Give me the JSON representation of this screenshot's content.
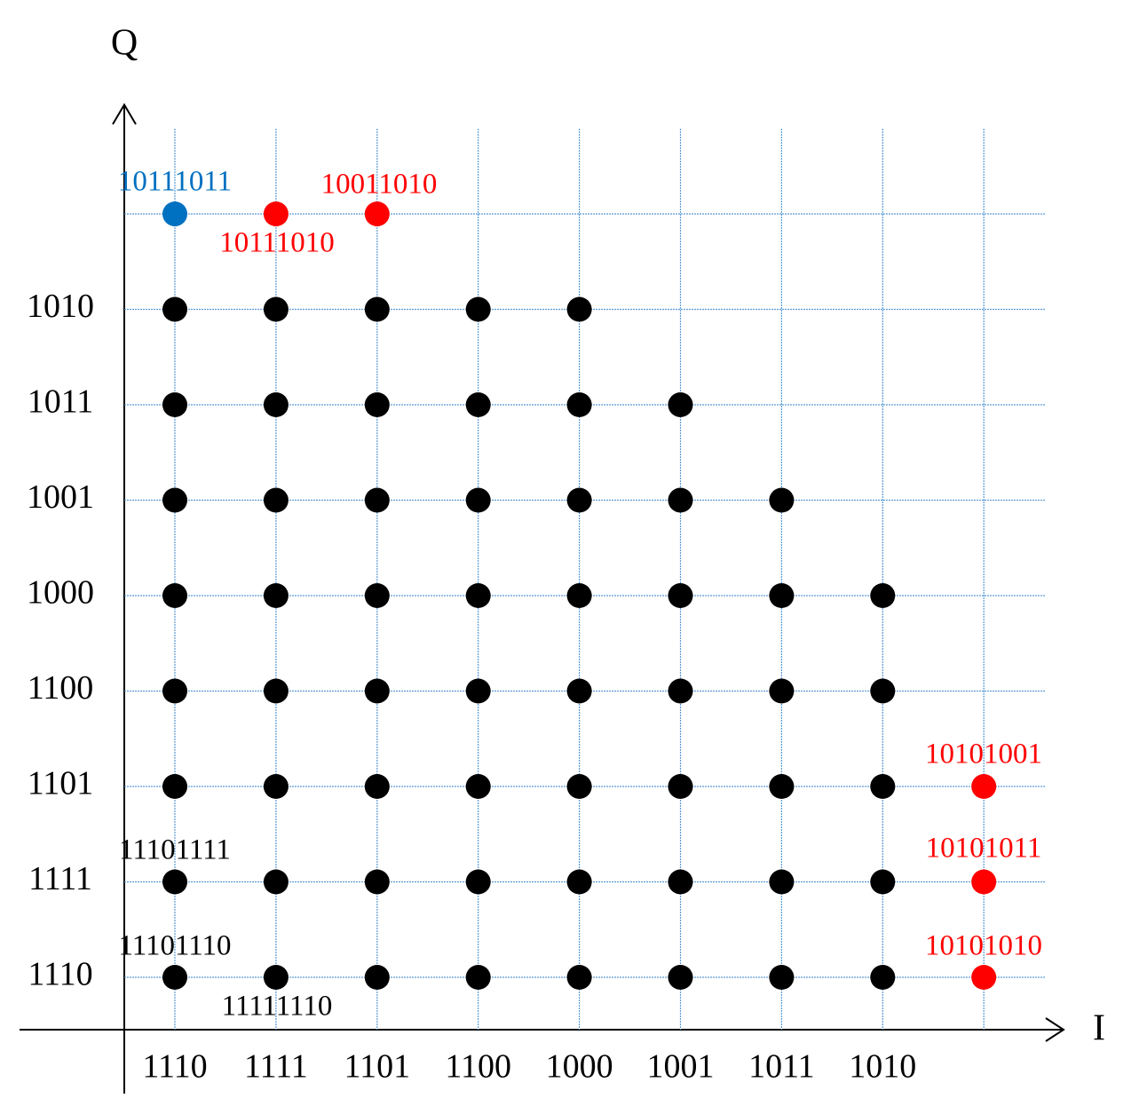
{
  "axes": {
    "x_label": "I",
    "y_label": "Q"
  },
  "i_labels": [
    "1110",
    "1111",
    "1101",
    "1100",
    "1000",
    "1001",
    "1011",
    "1010"
  ],
  "q_labels": [
    "1010",
    "1011",
    "1001",
    "1000",
    "1100",
    "1101",
    "1111",
    "1110"
  ],
  "rows": [
    [
      "#0070c0",
      "#ff0000",
      "#ff0000",
      null,
      null,
      null,
      null,
      null,
      null
    ],
    [
      "#000000",
      "#000000",
      "#000000",
      "#000000",
      "#000000",
      null,
      null,
      null,
      null
    ],
    [
      "#000000",
      "#000000",
      "#000000",
      "#000000",
      "#000000",
      "#000000",
      null,
      null,
      null
    ],
    [
      "#000000",
      "#000000",
      "#000000",
      "#000000",
      "#000000",
      "#000000",
      "#000000",
      null,
      null
    ],
    [
      "#000000",
      "#000000",
      "#000000",
      "#000000",
      "#000000",
      "#000000",
      "#000000",
      "#000000",
      null
    ],
    [
      "#000000",
      "#000000",
      "#000000",
      "#000000",
      "#000000",
      "#000000",
      "#000000",
      "#000000",
      null
    ],
    [
      "#000000",
      "#000000",
      "#000000",
      "#000000",
      "#000000",
      "#000000",
      "#000000",
      "#000000",
      "#ff0000"
    ],
    [
      "#000000",
      "#000000",
      "#000000",
      "#000000",
      "#000000",
      "#000000",
      "#000000",
      "#000000",
      "#ff0000"
    ],
    [
      "#000000",
      "#000000",
      "#000000",
      "#000000",
      "#000000",
      "#000000",
      "#000000",
      "#000000",
      "#ff0000"
    ]
  ],
  "annotations": [
    {
      "text": "10111011",
      "color": "#0070c0"
    },
    {
      "text": "10011010",
      "color": "#ff0000"
    },
    {
      "text": "10111010",
      "color": "#ff0000"
    },
    {
      "text": "10101001",
      "color": "#ff0000"
    },
    {
      "text": "10101011",
      "color": "#ff0000"
    },
    {
      "text": "10101010",
      "color": "#ff0000"
    },
    {
      "text": "11101111",
      "color": "#000000"
    },
    {
      "text": "11101110",
      "color": "#000000"
    },
    {
      "text": "11111110",
      "color": "#000000"
    }
  ]
}
